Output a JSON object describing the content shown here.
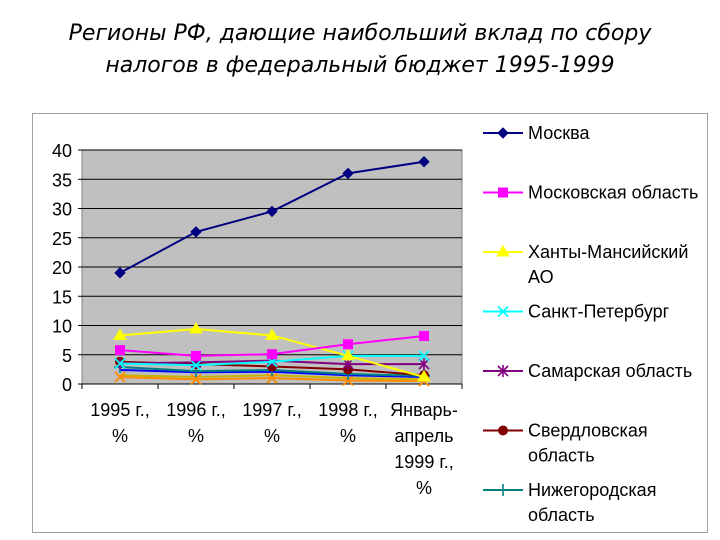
{
  "title": {
    "line1": "Регионы РФ, дающие наибольший вклад по сбору",
    "line2": "налогов в федеральный бюджет 1995-1999"
  },
  "chart_data": {
    "type": "line",
    "title": "Регионы РФ, дающие наибольший вклад по сбору налогов в федеральный бюджет 1995-1999",
    "categories": [
      [
        "1995 г.,",
        "%"
      ],
      [
        "1996 г.,",
        "%"
      ],
      [
        "1997 г.,",
        "%"
      ],
      [
        "1998 г.,",
        "%"
      ],
      [
        "Январь-",
        "апрель",
        "1999 г.,",
        "%"
      ]
    ],
    "ylim": [
      0,
      40
    ],
    "yticks": [
      0,
      5,
      10,
      15,
      20,
      25,
      30,
      35,
      40
    ],
    "grid": true,
    "legend_position": "right",
    "plot_background": "#c0c0c0",
    "series": [
      {
        "name": [
          "Москва"
        ],
        "color": "#000080",
        "marker": "diamond",
        "values": [
          19,
          26,
          29.5,
          36,
          38
        ]
      },
      {
        "name": [
          "Московская область"
        ],
        "color": "#ff00ff",
        "marker": "square",
        "values": [
          5.8,
          4.8,
          5.1,
          6.8,
          8.2
        ]
      },
      {
        "name": [
          "Ханты-Мансийский",
          "АО"
        ],
        "color": "#ffff00",
        "marker": "triangle",
        "values": [
          8.3,
          9.4,
          8.3,
          4.8,
          1.2
        ]
      },
      {
        "name": [
          "Санкт-Петербург"
        ],
        "color": "#00ffff",
        "marker": "x",
        "values": [
          3.5,
          3.2,
          3.8,
          4.8,
          4.8
        ]
      },
      {
        "name": [
          "Самарская область"
        ],
        "color": "#800080",
        "marker": "star",
        "values": [
          3.5,
          3.7,
          4.0,
          3.4,
          3.4
        ]
      },
      {
        "name": [
          "Свердловская",
          "область"
        ],
        "color": "#800000",
        "marker": "circle",
        "values": [
          3.8,
          3.4,
          3.0,
          2.5,
          1.5
        ]
      },
      {
        "name": [
          "Нижегородская",
          "область"
        ],
        "color": "#008080",
        "marker": "plus",
        "values": [
          2.9,
          2.2,
          2.4,
          1.7,
          1.4
        ]
      },
      {
        "color": "#0000ff",
        "marker": "none",
        "values": [
          2.4,
          2.0,
          2.1,
          1.5,
          1.2
        ]
      },
      {
        "color": "#ff8c00",
        "marker": "x",
        "values": [
          1.2,
          0.8,
          1.0,
          0.6,
          0.5
        ]
      },
      {
        "color": "#c8b400",
        "marker": "none",
        "values": [
          1.5,
          1.2,
          1.5,
          1.0,
          0.8
        ]
      }
    ]
  }
}
